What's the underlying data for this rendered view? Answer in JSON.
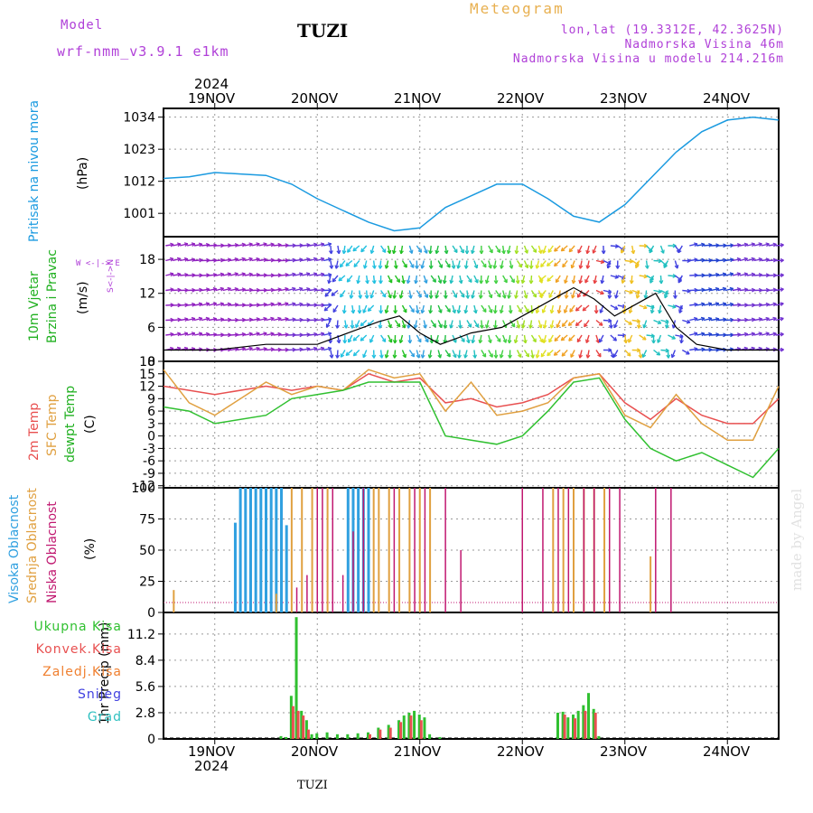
{
  "header": {
    "model_label": "Model",
    "model_name": "wrf-nmm_v3.9.1 e1km",
    "title": "TUZI",
    "meteogram_label": "Meteogram",
    "lonlat": "lon,lat (19.3312E, 42.3625N)",
    "elevation": "Nadmorska Visina 46m",
    "model_elevation": "Nadmorska Visina u modelu 214.216m"
  },
  "top_axis": {
    "year": "2024",
    "dates": [
      "19NOV",
      "20NOV",
      "21NOV",
      "22NOV",
      "23NOV",
      "24NOV"
    ]
  },
  "bottom_axis": {
    "year": "2024",
    "dates": [
      "19NOV",
      "20NOV",
      "21NOV",
      "22NOV",
      "23NOV",
      "24NOV"
    ],
    "station": "TUZI"
  },
  "watermark": "made by Angel",
  "panels": {
    "pressure": {
      "title": "Pritisak na nivou mora",
      "unit": "(hPa)"
    },
    "wind": {
      "title1": "10m Vjetar",
      "title2": "Brzina i Pravac",
      "unit": "(m/s)",
      "compass": "W <-|-> E",
      "compass_ns": "S<-|->N"
    },
    "temp": {
      "title1": "2m Temp",
      "title2": "SFC Temp",
      "title3": "dewpt Temp",
      "unit": "(C)"
    },
    "cloud": {
      "title1": "Visoka Oblacnost",
      "title2": "Srednja Oblacnost",
      "title3": "Niska Oblacnost",
      "unit": "(%)"
    },
    "precip": {
      "title": "1hr Precip (mm)",
      "legend": [
        "Ukupna Kisa",
        "Konvek.Kisa",
        "Zaledj.Kisa",
        "Snijeg",
        "Grad"
      ]
    }
  },
  "colors": {
    "pressure": "#1a9ae0",
    "temp2m": "#e85050",
    "sfc": "#e0a040",
    "dewpt": "#30c030",
    "high_cloud": "#30a0e0",
    "mid_cloud": "#e0a040",
    "low_cloud": "#c01870",
    "total_rain": "#30c030",
    "conv_rain": "#e85050",
    "frz_rain": "#f08030",
    "snow": "#4040e0",
    "hail": "#30c0c0"
  },
  "chart_data": [
    {
      "type": "line",
      "title": "",
      "ylabel": "(hPa)",
      "x_days": [
        "19NOV",
        "20NOV",
        "21NOV",
        "22NOV",
        "23NOV",
        "24NOV"
      ],
      "yticks": [
        1001,
        1012,
        1023,
        1034
      ],
      "ylim": [
        993,
        1037
      ],
      "series": [
        {
          "x": [
            18.5,
            18.75,
            19.0,
            19.25,
            19.5,
            19.75,
            20.0,
            20.25,
            20.5,
            20.75,
            21.0,
            21.25,
            21.5,
            21.75,
            22.0,
            22.25,
            22.5,
            22.75,
            23.0,
            23.25,
            23.5,
            23.75,
            24.0,
            24.25,
            24.5
          ],
          "values": [
            1013,
            1013.5,
            1015,
            1014.5,
            1014,
            1011,
            1006,
            1002,
            998,
            995,
            996,
            1003,
            1007,
            1011,
            1011,
            1006,
            1000,
            998,
            1004,
            1013,
            1022,
            1029,
            1033,
            1034,
            1033
          ]
        }
      ]
    },
    {
      "type": "line",
      "title": "",
      "ylabel": "(m/s)",
      "yticks": [
        0,
        6,
        12,
        18
      ],
      "ylim": [
        0,
        22
      ],
      "series": [
        {
          "x": [
            18.5,
            19.0,
            19.5,
            20.0,
            20.3,
            20.6,
            20.8,
            21.0,
            21.2,
            21.5,
            21.8,
            22.0,
            22.2,
            22.4,
            22.5,
            22.7,
            22.9,
            23.1,
            23.3,
            23.5,
            23.7,
            24.0,
            24.5
          ],
          "values": [
            2,
            2,
            3,
            3,
            5,
            7,
            8,
            5,
            3,
            5,
            6,
            8,
            10,
            12,
            13,
            11,
            8,
            10,
            12,
            6,
            3,
            2,
            2
          ]
        }
      ]
    },
    {
      "type": "line",
      "title": "",
      "ylabel": "(C)",
      "yticks": [
        -12,
        -9,
        -6,
        -3,
        0,
        3,
        6,
        9,
        12,
        15,
        18
      ],
      "ylim": [
        -12.5,
        18
      ],
      "series": [
        {
          "name": "2m Temp",
          "x": [
            18.5,
            19.0,
            19.5,
            19.75,
            20.0,
            20.25,
            20.5,
            20.75,
            21.0,
            21.25,
            21.5,
            21.75,
            22.0,
            22.25,
            22.5,
            22.75,
            23.0,
            23.25,
            23.5,
            23.75,
            24.0,
            24.25,
            24.5
          ],
          "values": [
            12,
            10,
            12,
            11,
            12,
            11,
            15,
            13,
            14,
            8,
            9,
            7,
            8,
            10,
            14,
            15,
            8,
            4,
            9,
            5,
            3,
            3,
            9
          ]
        },
        {
          "name": "SFC Temp",
          "x": [
            18.5,
            18.75,
            19.0,
            19.5,
            19.75,
            20.0,
            20.25,
            20.5,
            20.75,
            21.0,
            21.25,
            21.5,
            21.75,
            22.0,
            22.25,
            22.5,
            22.75,
            23.0,
            23.25,
            23.5,
            23.75,
            24.0,
            24.25,
            24.5
          ],
          "values": [
            16,
            8,
            5,
            13,
            10,
            12,
            11,
            16,
            14,
            15,
            6,
            13,
            5,
            6,
            8,
            14,
            15,
            5,
            2,
            10,
            3,
            -1,
            -1,
            12
          ]
        },
        {
          "name": "dewpt Temp",
          "x": [
            18.5,
            18.75,
            19.0,
            19.5,
            19.75,
            20.0,
            20.25,
            20.5,
            20.75,
            21.0,
            21.25,
            21.5,
            21.75,
            22.0,
            22.25,
            22.5,
            22.75,
            23.0,
            23.25,
            23.5,
            23.75,
            24.0,
            24.25,
            24.5
          ],
          "values": [
            7,
            6,
            3,
            5,
            9,
            10,
            11,
            13,
            13,
            13,
            0,
            -1,
            -2,
            0,
            6,
            13,
            14,
            4,
            -3,
            -6,
            -4,
            -7,
            -10,
            -3
          ]
        }
      ]
    },
    {
      "type": "bar",
      "title": "",
      "ylabel": "(%)",
      "yticks": [
        0,
        25,
        50,
        75,
        100
      ],
      "ylim": [
        0,
        100
      ],
      "series": [
        {
          "name": "Visoka Oblacnost",
          "x": [
            19.2,
            19.25,
            19.3,
            19.35,
            19.4,
            19.45,
            19.5,
            19.55,
            19.6,
            19.65,
            19.7,
            20.3,
            20.35,
            20.4,
            20.45,
            20.5
          ],
          "values": [
            72,
            100,
            100,
            100,
            100,
            100,
            100,
            100,
            100,
            100,
            70,
            100,
            100,
            100,
            100,
            100
          ]
        },
        {
          "name": "Srednja Oblacnost",
          "x": [
            18.6,
            19.6,
            19.75,
            19.85,
            19.95,
            20.1,
            20.55,
            20.6,
            20.7,
            20.8,
            20.9,
            21.0,
            21.1,
            22.3,
            22.4,
            22.5,
            22.6,
            22.7,
            22.8,
            23.25
          ],
          "values": [
            18,
            15,
            100,
            100,
            100,
            100,
            100,
            100,
            100,
            100,
            100,
            100,
            100,
            100,
            100,
            100,
            100,
            100,
            100,
            45
          ]
        },
        {
          "name": "Niska Oblacnost",
          "x": [
            19.8,
            19.9,
            20.0,
            20.05,
            20.15,
            20.25,
            20.35,
            20.45,
            20.75,
            20.95,
            21.05,
            21.25,
            21.4,
            22.0,
            22.2,
            22.35,
            22.45,
            22.6,
            22.7,
            22.85,
            22.95,
            23.3,
            23.45
          ],
          "values": [
            20,
            30,
            100,
            100,
            100,
            30,
            65,
            100,
            100,
            100,
            100,
            100,
            50,
            100,
            100,
            100,
            100,
            100,
            100,
            100,
            100,
            100,
            100
          ]
        }
      ]
    },
    {
      "type": "bar",
      "title": "",
      "ylabel": "1hr Precip (mm)",
      "yticks": [
        0,
        2.8,
        5.6,
        8.4,
        11.2
      ],
      "ylim": [
        0,
        13.5
      ],
      "series": [
        {
          "name": "Ukupna Kisa",
          "x": [
            19.65,
            19.7,
            19.75,
            19.8,
            19.85,
            19.9,
            19.95,
            20.0,
            20.1,
            20.2,
            20.3,
            20.4,
            20.5,
            20.6,
            20.7,
            20.8,
            20.85,
            20.9,
            20.95,
            21.0,
            21.05,
            21.1,
            21.2,
            22.35,
            22.4,
            22.45,
            22.5,
            22.55,
            22.6,
            22.65,
            22.7,
            22.75
          ],
          "values": [
            0.3,
            0.2,
            4.6,
            13.0,
            3.0,
            2.0,
            0.5,
            0.6,
            0.7,
            0.5,
            0.5,
            0.6,
            0.7,
            1.2,
            1.5,
            2.0,
            2.5,
            2.8,
            3.0,
            2.6,
            2.3,
            0.5,
            0.2,
            2.8,
            2.9,
            2.3,
            2.6,
            3.0,
            3.6,
            4.9,
            3.2,
            0.3
          ]
        },
        {
          "name": "Konvek.Kisa",
          "x": [
            19.75,
            19.8,
            19.85,
            19.9,
            20.5,
            20.6,
            20.7,
            20.8,
            20.9,
            21.0,
            22.4,
            22.5,
            22.6,
            22.7
          ],
          "values": [
            3.5,
            3.0,
            2.5,
            1.0,
            0.5,
            1.0,
            1.2,
            1.8,
            2.5,
            2.0,
            2.6,
            2.2,
            3.0,
            2.8
          ]
        }
      ]
    }
  ]
}
